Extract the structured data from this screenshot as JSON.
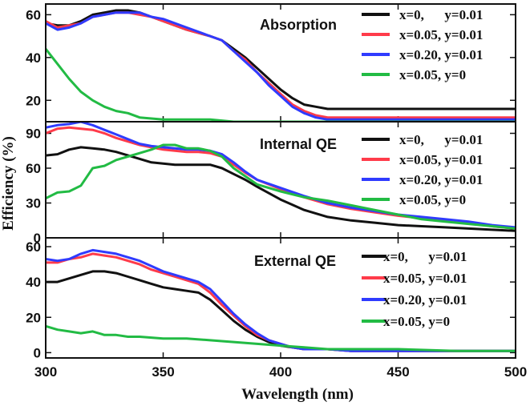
{
  "chart_data": {
    "type": "line",
    "xlabel": "Wavelength (nm)",
    "ylabel": "Efficiency (%)",
    "xlim": [
      300,
      500
    ],
    "xticks": [
      "300",
      "350",
      "400",
      "450",
      "500"
    ],
    "colors": {
      "x0_y001": "#111111",
      "x005_y001": "#ff3b4a",
      "x020_y001": "#2f3bff",
      "x005_y0": "#22bb44"
    },
    "panels": [
      {
        "title": "Absorption",
        "ylim": [
          10,
          65
        ],
        "yticks": [
          "20",
          "40",
          "60"
        ],
        "legend": [
          "x=0,      y=0.01",
          "x=0.05, y=0.01",
          "x=0.20, y=0.01",
          "x=0.05, y=0"
        ],
        "series": [
          {
            "name": "x=0, y=0.01",
            "x": [
              300,
              305,
              310,
              315,
              320,
              325,
              330,
              335,
              340,
              345,
              350,
              360,
              370,
              375,
              380,
              385,
              390,
              395,
              400,
              405,
              410,
              415,
              420,
              425,
              450,
              475,
              500
            ],
            "y": [
              56,
              55,
              55,
              57,
              60,
              61,
              62,
              62,
              61,
              59,
              57,
              53,
              50,
              48,
              44,
              40,
              35,
              30,
              25,
              21,
              18,
              17,
              16,
              16,
              16,
              16,
              16
            ]
          },
          {
            "name": "x=0.05, y=0.01",
            "x": [
              300,
              305,
              310,
              315,
              320,
              325,
              330,
              335,
              340,
              345,
              350,
              360,
              370,
              375,
              380,
              385,
              390,
              395,
              400,
              405,
              410,
              415,
              420,
              425,
              450,
              475,
              500
            ],
            "y": [
              57,
              54,
              55,
              56,
              59,
              60,
              61,
              61,
              60,
              59,
              57,
              53,
              50,
              48,
              43,
              39,
              33,
              28,
              23,
              18,
              15,
              13,
              12,
              12,
              12,
              12,
              12
            ]
          },
          {
            "name": "x=0.20, y=0.01",
            "x": [
              300,
              305,
              310,
              315,
              320,
              325,
              330,
              335,
              340,
              345,
              350,
              360,
              370,
              375,
              380,
              385,
              390,
              395,
              400,
              405,
              410,
              415,
              420,
              425,
              450,
              475,
              500
            ],
            "y": [
              56,
              53,
              54,
              56,
              59,
              60,
              61,
              61,
              61,
              59,
              58,
              54,
              50,
              48,
              43,
              38,
              33,
              27,
              22,
              17,
              14,
              12,
              11,
              11,
              11,
              11,
              11
            ]
          },
          {
            "name": "x=0.05, y=0",
            "x": [
              300,
              305,
              310,
              315,
              320,
              325,
              330,
              335,
              340,
              350,
              360,
              370,
              380,
              400,
              425,
              450,
              475,
              500
            ],
            "y": [
              44,
              37,
              30,
              24,
              20,
              17,
              15,
              14,
              12,
              11,
              11,
              11,
              10,
              10,
              10,
              10,
              10,
              10
            ]
          }
        ]
      },
      {
        "title": "Internal QE",
        "ylim": [
          0,
          100
        ],
        "yticks": [
          "0",
          "30",
          "60",
          "90"
        ],
        "legend": [
          "x=0,      y=0.01",
          "x=0.05, y=0.01",
          "x=0.20, y=0.01",
          "x=0.05, y=0"
        ],
        "series": [
          {
            "name": "x=0, y=0.01",
            "x": [
              300,
              305,
              310,
              315,
              320,
              325,
              330,
              335,
              340,
              345,
              350,
              355,
              360,
              365,
              370,
              375,
              380,
              385,
              390,
              400,
              410,
              420,
              430,
              440,
              450,
              460,
              470,
              480,
              490,
              500
            ],
            "y": [
              71,
              72,
              76,
              78,
              77,
              76,
              74,
              71,
              68,
              65,
              64,
              63,
              63,
              63,
              63,
              60,
              55,
              50,
              44,
              33,
              24,
              18,
              15,
              13,
              11,
              10,
              9,
              8,
              7,
              6
            ]
          },
          {
            "name": "x=0.05, y=0.01",
            "x": [
              300,
              305,
              310,
              315,
              320,
              325,
              330,
              335,
              340,
              345,
              350,
              355,
              360,
              365,
              370,
              375,
              380,
              385,
              390,
              400,
              410,
              420,
              430,
              440,
              450,
              460,
              470,
              480,
              490,
              500
            ],
            "y": [
              90,
              94,
              95,
              94,
              93,
              90,
              86,
              83,
              80,
              78,
              76,
              75,
              74,
              74,
              73,
              70,
              63,
              56,
              50,
              42,
              35,
              29,
              25,
              22,
              19,
              17,
              15,
              13,
              10,
              8
            ]
          },
          {
            "name": "x=0.20, y=0.01",
            "x": [
              300,
              305,
              310,
              315,
              320,
              325,
              330,
              335,
              340,
              345,
              350,
              355,
              360,
              365,
              370,
              375,
              380,
              385,
              390,
              400,
              410,
              420,
              430,
              440,
              450,
              460,
              470,
              480,
              490,
              500
            ],
            "y": [
              95,
              97,
              98,
              100,
              97,
              93,
              89,
              85,
              81,
              79,
              78,
              77,
              76,
              76,
              75,
              72,
              65,
              57,
              50,
              43,
              36,
              30,
              26,
              23,
              20,
              18,
              16,
              14,
              11,
              9
            ]
          },
          {
            "name": "x=0.05, y=0",
            "x": [
              300,
              305,
              310,
              315,
              320,
              325,
              330,
              335,
              340,
              345,
              350,
              355,
              360,
              365,
              370,
              375,
              380,
              385,
              390,
              400,
              410,
              420,
              430,
              440,
              450,
              460,
              470,
              480,
              490,
              500
            ],
            "y": [
              34,
              39,
              40,
              45,
              60,
              62,
              67,
              70,
              73,
              76,
              80,
              80,
              77,
              77,
              75,
              70,
              60,
              53,
              46,
              40,
              35,
              32,
              28,
              24,
              20,
              16,
              14,
              12,
              10,
              8
            ]
          }
        ]
      },
      {
        "title": "External QE",
        "ylim": [
          -3,
          65
        ],
        "yticks": [
          "0",
          "20",
          "40",
          "60"
        ],
        "legend": [
          "x=0,      y=0.01",
          "x=0.05, y=0.01",
          "x=0.20, y=0.01",
          "x=0.05, y=0"
        ],
        "series": [
          {
            "name": "x=0, y=0.01",
            "x": [
              300,
              305,
              310,
              315,
              320,
              325,
              330,
              335,
              340,
              345,
              350,
              355,
              360,
              365,
              370,
              375,
              380,
              385,
              390,
              395,
              400,
              405,
              410,
              420,
              430,
              450,
              475,
              500
            ],
            "y": [
              40,
              40,
              42,
              44,
              46,
              46,
              45,
              43,
              41,
              39,
              37,
              36,
              35,
              34,
              30,
              24,
              18,
              13,
              9,
              6,
              4,
              3,
              2,
              2,
              1,
              1,
              1,
              1
            ]
          },
          {
            "name": "x=0.05, y=0.01",
            "x": [
              300,
              305,
              310,
              315,
              320,
              325,
              330,
              335,
              340,
              345,
              350,
              355,
              360,
              365,
              370,
              375,
              380,
              385,
              390,
              395,
              400,
              405,
              410,
              420,
              430,
              450,
              475,
              500
            ],
            "y": [
              51,
              51,
              53,
              54,
              56,
              55,
              54,
              52,
              50,
              47,
              45,
              43,
              41,
              39,
              34,
              27,
              21,
              15,
              10,
              7,
              5,
              3,
              2,
              2,
              1,
              1,
              1,
              1
            ]
          },
          {
            "name": "x=0.20, y=0.01",
            "x": [
              300,
              305,
              310,
              315,
              320,
              325,
              330,
              335,
              340,
              345,
              350,
              355,
              360,
              365,
              370,
              375,
              380,
              385,
              390,
              395,
              400,
              405,
              410,
              420,
              430,
              450,
              475,
              500
            ],
            "y": [
              53,
              52,
              53,
              56,
              58,
              57,
              56,
              54,
              52,
              49,
              46,
              44,
              42,
              40,
              36,
              29,
              22,
              16,
              11,
              7,
              5,
              3,
              2,
              2,
              1,
              1,
              1,
              1
            ]
          },
          {
            "name": "x=0.05, y=0",
            "x": [
              300,
              305,
              310,
              315,
              320,
              325,
              330,
              335,
              340,
              350,
              360,
              370,
              380,
              390,
              400,
              410,
              420,
              450,
              475,
              500
            ],
            "y": [
              15,
              13,
              12,
              11,
              12,
              10,
              10,
              9,
              9,
              8,
              8,
              7,
              6,
              5,
              4,
              3,
              2,
              2,
              1,
              1
            ]
          }
        ]
      }
    ]
  }
}
